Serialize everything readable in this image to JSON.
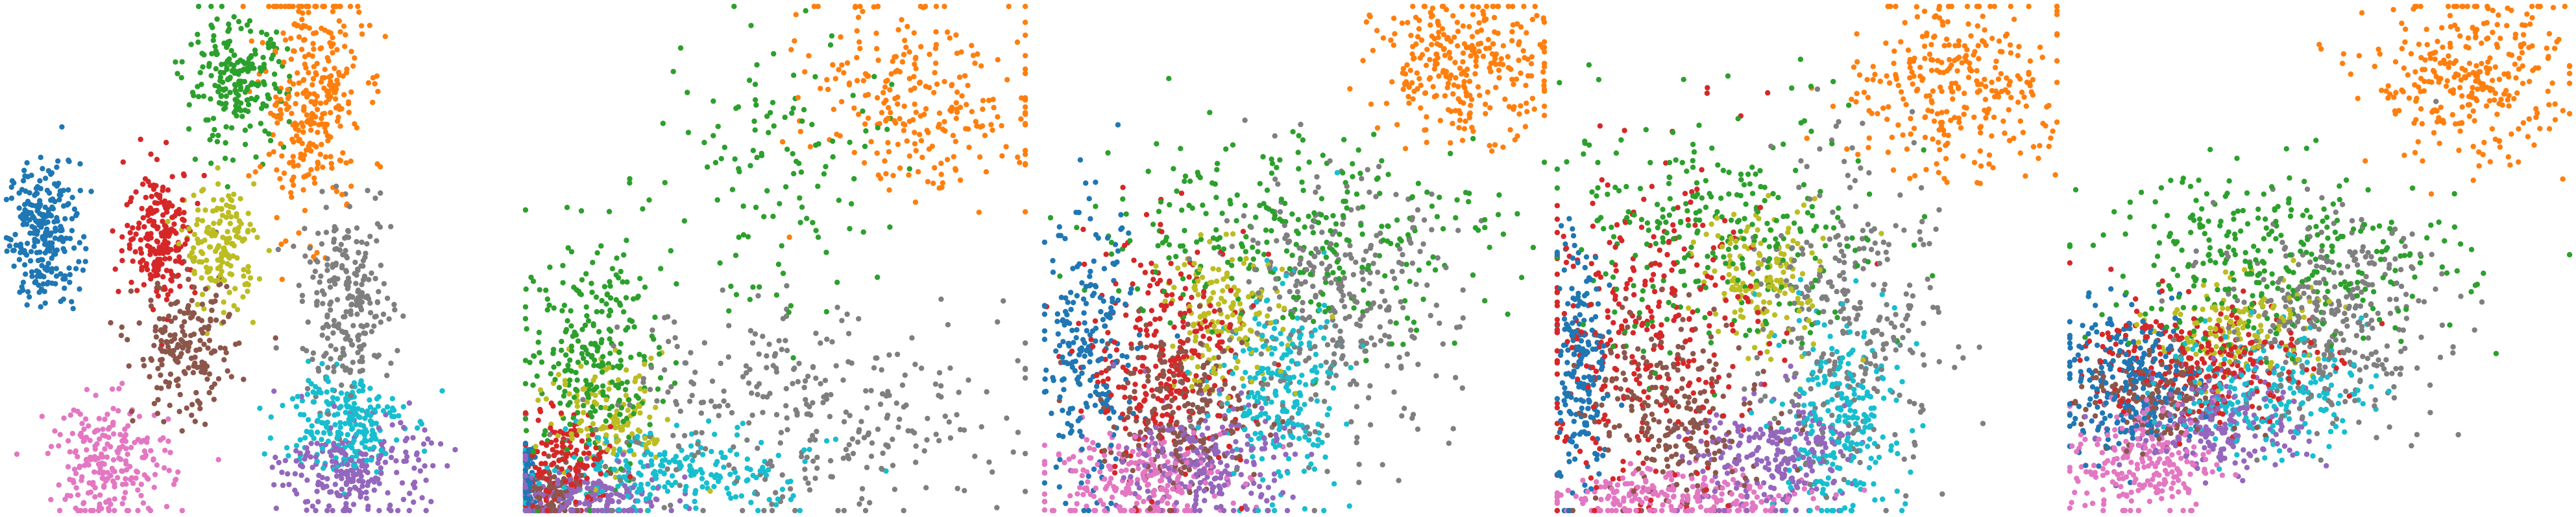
{
  "palette": {
    "blue": "#1f77b4",
    "orange": "#ff7f0e",
    "green": "#2ca02c",
    "red": "#d62728",
    "purple": "#9467bd",
    "brown": "#8c564b",
    "pink": "#e377c2",
    "gray": "#7f7f7f",
    "olive": "#bcbd22",
    "cyan": "#17becf"
  },
  "chart_data": [
    {
      "type": "scatter",
      "title": "",
      "axes": "hidden",
      "grid": false,
      "legend": "none",
      "xlim": [
        0,
        100
      ],
      "ylim": [
        0,
        100
      ],
      "clusters": [
        {
          "color": "blue",
          "center": [
            8,
            55
          ],
          "spread": [
            3.5,
            7
          ],
          "n": 260
        },
        {
          "color": "orange",
          "center": [
            61,
            82
          ],
          "spread": [
            5,
            12
          ],
          "n": 320
        },
        {
          "color": "green",
          "center": [
            46,
            84
          ],
          "spread": [
            5,
            6
          ],
          "n": 220
        },
        {
          "color": "red",
          "center": [
            31,
            55
          ],
          "spread": [
            3.5,
            6.5
          ],
          "n": 210
        },
        {
          "color": "olive",
          "center": [
            43,
            52
          ],
          "spread": [
            3.5,
            6
          ],
          "n": 170
        },
        {
          "color": "brown",
          "center": [
            36,
            32
          ],
          "spread": [
            5,
            7
          ],
          "n": 200
        },
        {
          "color": "pink",
          "center": [
            21,
            10
          ],
          "spread": [
            6,
            6
          ],
          "n": 230
        },
        {
          "color": "gray",
          "center": [
            68,
            41
          ],
          "spread": [
            4.5,
            9
          ],
          "n": 240
        },
        {
          "color": "cyan",
          "center": [
            67,
            18
          ],
          "spread": [
            6,
            5
          ],
          "n": 220
        },
        {
          "color": "purple",
          "center": [
            70,
            8
          ],
          "spread": [
            7,
            5
          ],
          "n": 230
        }
      ]
    },
    {
      "type": "scatter",
      "title": "",
      "axes": "hidden",
      "grid": false,
      "legend": "none",
      "xlim": [
        0,
        100
      ],
      "ylim": [
        0,
        100
      ],
      "clusters": [
        {
          "color": "gray",
          "center": [
            55,
            20
          ],
          "spread": [
            20,
            10
          ],
          "n": 320
        },
        {
          "color": "cyan",
          "center": [
            28,
            8
          ],
          "spread": [
            14,
            4
          ],
          "n": 230
        },
        {
          "color": "purple",
          "center": [
            12,
            3
          ],
          "spread": [
            8,
            3
          ],
          "n": 200
        },
        {
          "color": "green",
          "center": [
            14,
            30
          ],
          "spread": [
            7,
            12
          ],
          "n": 280
        },
        {
          "color": "green",
          "center": [
            52,
            70
          ],
          "spread": [
            12,
            14
          ],
          "n": 120
        },
        {
          "color": "red",
          "center": [
            8,
            10
          ],
          "spread": [
            4,
            5
          ],
          "n": 150
        },
        {
          "color": "olive",
          "center": [
            18,
            18
          ],
          "spread": [
            6,
            6
          ],
          "n": 130
        },
        {
          "color": "brown",
          "center": [
            6,
            4
          ],
          "spread": [
            3,
            3
          ],
          "n": 90
        },
        {
          "color": "blue",
          "center": [
            1,
            6
          ],
          "spread": [
            1,
            4
          ],
          "n": 70
        },
        {
          "color": "orange",
          "center": [
            80,
            82
          ],
          "spread": [
            12,
            10
          ],
          "n": 260
        }
      ]
    },
    {
      "type": "scatter",
      "title": "",
      "axes": "hidden",
      "grid": false,
      "legend": "none",
      "xlim": [
        0,
        100
      ],
      "ylim": [
        0,
        100
      ],
      "clusters": [
        {
          "color": "orange",
          "center": [
            84,
            88
          ],
          "spread": [
            9,
            7
          ],
          "n": 300
        },
        {
          "color": "green",
          "center": [
            50,
            55
          ],
          "spread": [
            20,
            10
          ],
          "n": 300
        },
        {
          "color": "gray",
          "center": [
            58,
            40
          ],
          "spread": [
            12,
            13
          ],
          "n": 330
        },
        {
          "color": "red",
          "center": [
            25,
            30
          ],
          "spread": [
            8,
            12
          ],
          "n": 280
        },
        {
          "color": "blue",
          "center": [
            9,
            30
          ],
          "spread": [
            5,
            14
          ],
          "n": 230
        },
        {
          "color": "olive",
          "center": [
            36,
            38
          ],
          "spread": [
            6,
            7
          ],
          "n": 150
        },
        {
          "color": "brown",
          "center": [
            28,
            20
          ],
          "spread": [
            8,
            8
          ],
          "n": 230
        },
        {
          "color": "pink",
          "center": [
            18,
            7
          ],
          "spread": [
            9,
            5
          ],
          "n": 240
        },
        {
          "color": "purple",
          "center": [
            33,
            10
          ],
          "spread": [
            8,
            6
          ],
          "n": 230
        },
        {
          "color": "cyan",
          "center": [
            47,
            24
          ],
          "spread": [
            6,
            10
          ],
          "n": 230
        }
      ]
    },
    {
      "type": "scatter",
      "title": "",
      "axes": "hidden",
      "grid": false,
      "legend": "none",
      "xlim": [
        0,
        100
      ],
      "ylim": [
        0,
        100
      ],
      "clusters": [
        {
          "color": "orange",
          "center": [
            80,
            84
          ],
          "spread": [
            10,
            9
          ],
          "n": 300
        },
        {
          "color": "green",
          "center": [
            33,
            55
          ],
          "spread": [
            16,
            12
          ],
          "n": 290
        },
        {
          "color": "red",
          "center": [
            18,
            36
          ],
          "spread": [
            12,
            16
          ],
          "n": 320
        },
        {
          "color": "blue",
          "center": [
            5,
            28
          ],
          "spread": [
            2.5,
            12
          ],
          "n": 200
        },
        {
          "color": "olive",
          "center": [
            42,
            46
          ],
          "spread": [
            6,
            7
          ],
          "n": 150
        },
        {
          "color": "brown",
          "center": [
            24,
            20
          ],
          "spread": [
            9,
            10
          ],
          "n": 260
        },
        {
          "color": "gray",
          "center": [
            59,
            38
          ],
          "spread": [
            9,
            15
          ],
          "n": 300
        },
        {
          "color": "cyan",
          "center": [
            56,
            18
          ],
          "spread": [
            6,
            10
          ],
          "n": 250
        },
        {
          "color": "purple",
          "center": [
            43,
            12
          ],
          "spread": [
            8,
            6
          ],
          "n": 230
        },
        {
          "color": "pink",
          "center": [
            24,
            3
          ],
          "spread": [
            14,
            2.5
          ],
          "n": 230
        }
      ]
    },
    {
      "type": "scatter",
      "title": "",
      "axes": "hidden",
      "grid": false,
      "legend": "none",
      "xlim": [
        0,
        100
      ],
      "ylim": [
        0,
        100
      ],
      "clusters": [
        {
          "color": "orange",
          "center": [
            80,
            85
          ],
          "spread": [
            10,
            8
          ],
          "n": 300
        },
        {
          "color": "green",
          "center": [
            42,
            50
          ],
          "spread": [
            18,
            9
          ],
          "n": 320
        },
        {
          "color": "blue",
          "center": [
            12,
            26
          ],
          "spread": [
            7,
            7
          ],
          "n": 260
        },
        {
          "color": "red",
          "center": [
            26,
            30
          ],
          "spread": [
            11,
            6
          ],
          "n": 260
        },
        {
          "color": "olive",
          "center": [
            33,
            36
          ],
          "spread": [
            8,
            5
          ],
          "n": 150
        },
        {
          "color": "gray",
          "center": [
            52,
            38
          ],
          "spread": [
            11,
            10
          ],
          "n": 330
        },
        {
          "color": "cyan",
          "center": [
            39,
            24
          ],
          "spread": [
            10,
            6
          ],
          "n": 220
        },
        {
          "color": "purple",
          "center": [
            30,
            18
          ],
          "spread": [
            9,
            5
          ],
          "n": 220
        },
        {
          "color": "brown",
          "center": [
            18,
            22
          ],
          "spread": [
            7,
            5
          ],
          "n": 170
        },
        {
          "color": "pink",
          "center": [
            15,
            10
          ],
          "spread": [
            7,
            6
          ],
          "n": 230
        }
      ]
    }
  ]
}
